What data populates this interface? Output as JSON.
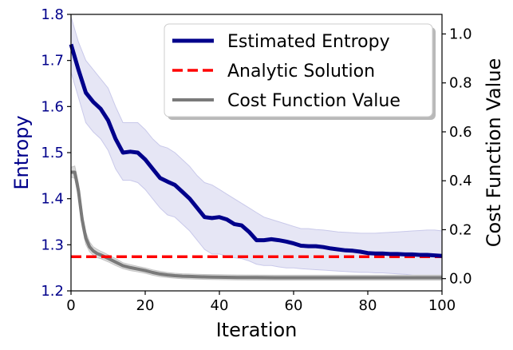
{
  "chart_data": {
    "type": "line",
    "title": "",
    "xlabel": "Iteration",
    "ylabel": "Entropy",
    "y2label": "Cost Function Value",
    "xlim": [
      0,
      100
    ],
    "ylim": [
      1.2,
      1.8
    ],
    "y2lim": [
      -0.05,
      1.08
    ],
    "xticks": [
      "0",
      "20",
      "40",
      "60",
      "80",
      "100"
    ],
    "yticks": [
      "1.2",
      "1.3",
      "1.4",
      "1.5",
      "1.6",
      "1.7",
      "1.8"
    ],
    "y2ticks": [
      "0.0",
      "0.2",
      "0.4",
      "0.6",
      "0.8",
      "1.0"
    ],
    "legend_position": "top-right",
    "colors": {
      "entropy": "#00008b",
      "entropy_band": "#e6e6f5",
      "analytic": "#ff0000",
      "cost": "#7a7a7a",
      "cost_band": "#d3d3d3",
      "left_axis_text": "#00008b",
      "right_axis_text": "#000000"
    },
    "series": [
      {
        "name": "Estimated Entropy",
        "axis": "left",
        "x": [
          0,
          2,
          4,
          6,
          8,
          10,
          12,
          14,
          16,
          18,
          20,
          22,
          24,
          26,
          28,
          30,
          32,
          34,
          36,
          38,
          40,
          42,
          44,
          46,
          48,
          50,
          52,
          54,
          56,
          58,
          60,
          62,
          64,
          66,
          68,
          70,
          72,
          74,
          76,
          78,
          80,
          82,
          84,
          86,
          88,
          90,
          92,
          94,
          96,
          98,
          100
        ],
        "values": [
          1.735,
          1.68,
          1.63,
          1.61,
          1.595,
          1.57,
          1.53,
          1.5,
          1.502,
          1.5,
          1.485,
          1.465,
          1.445,
          1.437,
          1.43,
          1.415,
          1.4,
          1.38,
          1.36,
          1.358,
          1.36,
          1.355,
          1.345,
          1.342,
          1.328,
          1.31,
          1.31,
          1.312,
          1.31,
          1.307,
          1.303,
          1.298,
          1.297,
          1.297,
          1.295,
          1.292,
          1.29,
          1.288,
          1.287,
          1.285,
          1.282,
          1.281,
          1.281,
          1.28,
          1.28,
          1.279,
          1.279,
          1.278,
          1.278,
          1.277,
          1.276
        ],
        "upper": [
          1.795,
          1.74,
          1.7,
          1.68,
          1.66,
          1.64,
          1.6,
          1.565,
          1.565,
          1.565,
          1.55,
          1.53,
          1.515,
          1.51,
          1.5,
          1.485,
          1.47,
          1.45,
          1.435,
          1.43,
          1.42,
          1.41,
          1.4,
          1.39,
          1.38,
          1.37,
          1.36,
          1.355,
          1.35,
          1.345,
          1.34,
          1.335,
          1.335,
          1.333,
          1.332,
          1.33,
          1.328,
          1.327,
          1.326,
          1.325,
          1.325,
          1.325,
          1.326,
          1.327,
          1.328,
          1.329,
          1.33,
          1.331,
          1.332,
          1.332,
          1.33
        ],
        "lower": [
          1.675,
          1.62,
          1.565,
          1.545,
          1.53,
          1.505,
          1.465,
          1.44,
          1.44,
          1.435,
          1.42,
          1.4,
          1.38,
          1.365,
          1.36,
          1.345,
          1.33,
          1.31,
          1.29,
          1.28,
          1.28,
          1.275,
          1.272,
          1.27,
          1.265,
          1.258,
          1.255,
          1.255,
          1.252,
          1.25,
          1.25,
          1.248,
          1.247,
          1.246,
          1.245,
          1.244,
          1.243,
          1.242,
          1.241,
          1.24,
          1.24,
          1.239,
          1.239,
          1.238,
          1.237,
          1.236,
          1.234,
          1.232,
          1.23,
          1.228,
          1.225
        ]
      },
      {
        "name": "Analytic Solution",
        "axis": "left",
        "x": [
          0,
          100
        ],
        "values": [
          1.274,
          1.274
        ]
      },
      {
        "name": "Cost Function Value",
        "axis": "right",
        "x": [
          0,
          1,
          2,
          3,
          4,
          5,
          6,
          7,
          8,
          9,
          10,
          12,
          14,
          16,
          18,
          20,
          22,
          24,
          26,
          28,
          30,
          32,
          34,
          36,
          38,
          40,
          45,
          50,
          55,
          60,
          65,
          70,
          75,
          80,
          85,
          90,
          95,
          100
        ],
        "values": [
          0.435,
          0.435,
          0.36,
          0.24,
          0.165,
          0.13,
          0.113,
          0.103,
          0.097,
          0.09,
          0.083,
          0.068,
          0.053,
          0.045,
          0.039,
          0.033,
          0.025,
          0.019,
          0.015,
          0.012,
          0.01,
          0.009,
          0.008,
          0.007,
          0.0065,
          0.006,
          0.005,
          0.0045,
          0.004,
          0.004,
          0.004,
          0.004,
          0.004,
          0.004,
          0.004,
          0.004,
          0.004,
          0.004
        ],
        "upper": [
          0.455,
          0.46,
          0.39,
          0.27,
          0.19,
          0.15,
          0.13,
          0.12,
          0.112,
          0.105,
          0.097,
          0.082,
          0.065,
          0.057,
          0.05,
          0.044,
          0.036,
          0.03,
          0.025,
          0.022,
          0.02,
          0.019,
          0.018,
          0.017,
          0.0165,
          0.016,
          0.015,
          0.0145,
          0.014,
          0.014,
          0.014,
          0.014,
          0.014,
          0.014,
          0.014,
          0.014,
          0.014,
          0.014
        ],
        "lower": [
          0.415,
          0.41,
          0.33,
          0.21,
          0.14,
          0.11,
          0.096,
          0.086,
          0.082,
          0.075,
          0.069,
          0.054,
          0.041,
          0.033,
          0.028,
          0.022,
          0.014,
          0.008,
          0.005,
          0.002,
          0.0,
          -0.001,
          -0.002,
          -0.003,
          -0.0035,
          -0.004,
          -0.005,
          -0.0055,
          -0.006,
          -0.006,
          -0.006,
          -0.006,
          -0.006,
          -0.006,
          -0.006,
          -0.006,
          -0.006,
          -0.006
        ]
      }
    ]
  }
}
